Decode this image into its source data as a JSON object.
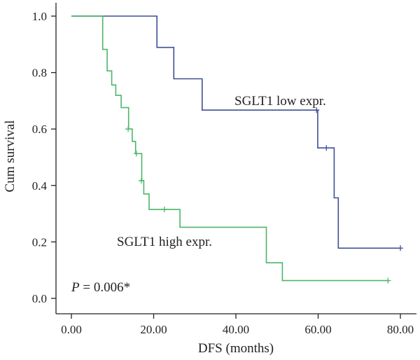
{
  "chart_data": {
    "type": "line",
    "step": true,
    "xlabel": "DFS (months)",
    "ylabel": "Cum survival",
    "xlim": [
      0,
      80
    ],
    "ylim": [
      0,
      1.0
    ],
    "x_ticks": [
      0,
      20,
      40,
      60,
      80
    ],
    "x_tick_labels": [
      "0.00",
      "20.00",
      "40.00",
      "60.00",
      "80.00"
    ],
    "y_ticks": [
      0,
      0.2,
      0.4,
      0.6,
      0.8,
      1.0
    ],
    "y_tick_labels": [
      "0.0",
      "0.2",
      "0.4",
      "0.6",
      "0.8",
      "1.0"
    ],
    "grid": false,
    "annotation": {
      "prefix": "P",
      "text": " = 0.006*"
    },
    "series": [
      {
        "name": "SGLT1 low expr.",
        "color": "#3f4f96",
        "steps": [
          [
            0,
            1.0
          ],
          [
            20.8,
            0.889
          ],
          [
            24.9,
            0.778
          ],
          [
            31.8,
            0.667
          ],
          [
            59.9,
            0.533
          ],
          [
            63.9,
            0.356
          ],
          [
            64.9,
            0.178
          ],
          [
            80.0,
            0.178
          ]
        ],
        "censored": [
          [
            59.6,
            0.667
          ],
          [
            62.0,
            0.533
          ],
          [
            80.0,
            0.178
          ]
        ]
      },
      {
        "name": "SGLT1 high expr.",
        "color": "#4cb667",
        "steps": [
          [
            0,
            1.0
          ],
          [
            7.6,
            0.882
          ],
          [
            8.7,
            0.806
          ],
          [
            9.8,
            0.756
          ],
          [
            10.8,
            0.719
          ],
          [
            12.1,
            0.676
          ],
          [
            13.9,
            0.6
          ],
          [
            14.8,
            0.556
          ],
          [
            15.6,
            0.513
          ],
          [
            17.1,
            0.417
          ],
          [
            17.6,
            0.37
          ],
          [
            18.9,
            0.315
          ],
          [
            26.4,
            0.252
          ],
          [
            47.4,
            0.126
          ],
          [
            51.3,
            0.063
          ],
          [
            77.0,
            0.063
          ]
        ],
        "censored": [
          [
            13.8,
            0.6
          ],
          [
            15.8,
            0.513
          ],
          [
            17.0,
            0.417
          ],
          [
            22.6,
            0.315
          ],
          [
            77.0,
            0.063
          ]
        ]
      }
    ]
  }
}
